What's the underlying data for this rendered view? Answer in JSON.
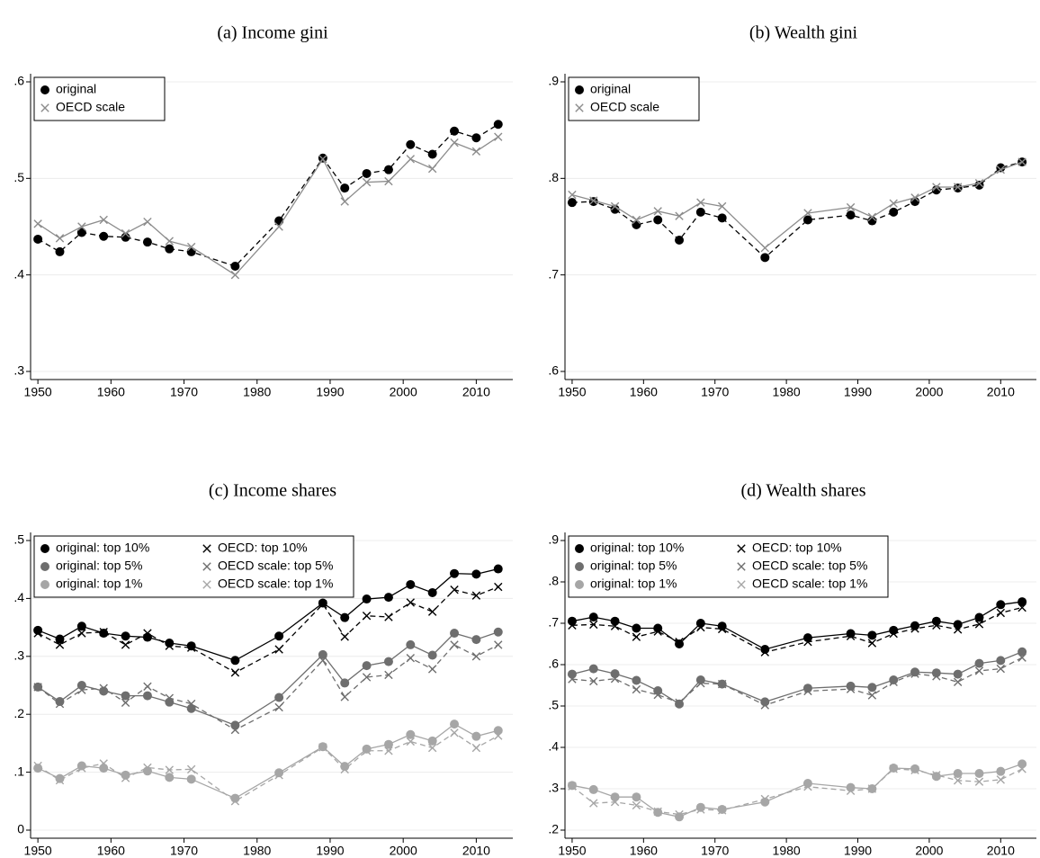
{
  "chart_data": [
    {
      "type": "line",
      "title": "(a) Income gini",
      "x": [
        1950,
        1953,
        1956,
        1959,
        1962,
        1965,
        1968,
        1971,
        1977,
        1983,
        1989,
        1992,
        1995,
        1998,
        2001,
        2004,
        2007,
        2010,
        2013
      ],
      "xlim": [
        1949,
        2015
      ],
      "xticks": [
        1950,
        1960,
        1970,
        1980,
        1990,
        2000,
        2010
      ],
      "ylim": [
        0.3,
        0.6
      ],
      "yticks": [
        {
          "value": 0.3,
          "label": ".3"
        },
        {
          "value": 0.4,
          "label": ".4"
        },
        {
          "value": 0.5,
          "label": ".5"
        },
        {
          "value": 0.6,
          "label": ".6"
        }
      ],
      "grid": true,
      "legend": "top-left",
      "series": [
        {
          "name": "original",
          "color": "#000000",
          "marker": "circle",
          "line_style": "dashed",
          "values": [
            0.437,
            0.424,
            0.444,
            0.44,
            0.439,
            0.434,
            0.427,
            0.424,
            0.409,
            0.456,
            0.521,
            0.49,
            0.505,
            0.509,
            0.535,
            0.525,
            0.549,
            0.542,
            0.556
          ]
        },
        {
          "name": "OECD scale",
          "color": "#8c8c8c",
          "marker": "x",
          "line_style": "solid",
          "values": [
            0.453,
            0.438,
            0.45,
            0.457,
            0.443,
            0.455,
            0.435,
            0.429,
            0.4,
            0.45,
            0.52,
            0.476,
            0.496,
            0.497,
            0.52,
            0.51,
            0.537,
            0.528,
            0.543
          ]
        }
      ]
    },
    {
      "type": "line",
      "title": "(b) Wealth gini",
      "x": [
        1950,
        1953,
        1956,
        1959,
        1962,
        1965,
        1968,
        1971,
        1977,
        1983,
        1989,
        1992,
        1995,
        1998,
        2001,
        2004,
        2007,
        2010,
        2013
      ],
      "xlim": [
        1949,
        2015
      ],
      "xticks": [
        1950,
        1960,
        1970,
        1980,
        1990,
        2000,
        2010
      ],
      "ylim": [
        0.6,
        0.9
      ],
      "yticks": [
        {
          "value": 0.6,
          "label": ".6"
        },
        {
          "value": 0.7,
          "label": ".7"
        },
        {
          "value": 0.8,
          "label": ".8"
        },
        {
          "value": 0.9,
          "label": ".9"
        }
      ],
      "grid": true,
      "legend": "top-left",
      "series": [
        {
          "name": "original",
          "color": "#000000",
          "marker": "circle",
          "line_style": "dashed",
          "values": [
            0.775,
            0.776,
            0.768,
            0.752,
            0.757,
            0.736,
            0.765,
            0.759,
            0.718,
            0.757,
            0.762,
            0.756,
            0.765,
            0.776,
            0.788,
            0.79,
            0.793,
            0.811,
            0.817
          ]
        },
        {
          "name": "OECD scale",
          "color": "#8c8c8c",
          "marker": "x",
          "line_style": "solid",
          "values": [
            0.783,
            0.777,
            0.771,
            0.757,
            0.766,
            0.761,
            0.775,
            0.771,
            0.728,
            0.764,
            0.77,
            0.76,
            0.774,
            0.78,
            0.791,
            0.791,
            0.795,
            0.809,
            0.817
          ]
        }
      ]
    },
    {
      "type": "line",
      "title": "(c) Income shares",
      "x": [
        1950,
        1953,
        1956,
        1959,
        1962,
        1965,
        1968,
        1971,
        1977,
        1983,
        1989,
        1992,
        1995,
        1998,
        2001,
        2004,
        2007,
        2010,
        2013
      ],
      "xlim": [
        1949,
        2015
      ],
      "xticks": [
        1950,
        1960,
        1970,
        1980,
        1990,
        2000,
        2010
      ],
      "ylim": [
        0,
        0.5
      ],
      "yticks": [
        0,
        {
          "value": 0.1,
          "label": ".1"
        },
        {
          "value": 0.2,
          "label": ".2"
        },
        {
          "value": 0.3,
          "label": ".3"
        },
        {
          "value": 0.4,
          "label": ".4"
        },
        {
          "value": 0.5,
          "label": ".5"
        }
      ],
      "grid": true,
      "legend": "top-left",
      "series": [
        {
          "name": "original: top 10%",
          "color": "#000000",
          "marker": "circle",
          "line_style": "solid",
          "values": [
            0.345,
            0.33,
            0.352,
            0.34,
            0.335,
            0.333,
            0.323,
            0.318,
            0.293,
            0.335,
            0.392,
            0.367,
            0.399,
            0.402,
            0.424,
            0.41,
            0.443,
            0.442,
            0.451
          ]
        },
        {
          "name": "original: top 5%",
          "color": "#6e6e6e",
          "marker": "circle",
          "line_style": "solid",
          "values": [
            0.247,
            0.222,
            0.25,
            0.24,
            0.232,
            0.232,
            0.221,
            0.21,
            0.181,
            0.229,
            0.303,
            0.254,
            0.284,
            0.291,
            0.32,
            0.302,
            0.34,
            0.329,
            0.342
          ]
        },
        {
          "name": "original: top 1%",
          "color": "#a6a6a6",
          "marker": "circle",
          "line_style": "solid",
          "values": [
            0.107,
            0.089,
            0.111,
            0.107,
            0.095,
            0.102,
            0.091,
            0.088,
            0.055,
            0.099,
            0.144,
            0.11,
            0.14,
            0.148,
            0.165,
            0.154,
            0.183,
            0.162,
            0.172
          ]
        },
        {
          "name": "OECD: top 10%",
          "color": "#000000",
          "marker": "x",
          "line_style": "dashed",
          "values": [
            0.34,
            0.32,
            0.34,
            0.342,
            0.32,
            0.34,
            0.318,
            0.315,
            0.272,
            0.312,
            0.39,
            0.334,
            0.37,
            0.368,
            0.393,
            0.377,
            0.415,
            0.405,
            0.42
          ]
        },
        {
          "name": "OECD scale: top 5%",
          "color": "#6e6e6e",
          "marker": "x",
          "line_style": "dashed",
          "values": [
            0.247,
            0.218,
            0.242,
            0.245,
            0.22,
            0.248,
            0.228,
            0.218,
            0.173,
            0.212,
            0.293,
            0.23,
            0.264,
            0.268,
            0.297,
            0.278,
            0.32,
            0.3,
            0.32
          ]
        },
        {
          "name": "OECD scale: top 1%",
          "color": "#a6a6a6",
          "marker": "x",
          "line_style": "dashed",
          "values": [
            0.111,
            0.086,
            0.107,
            0.115,
            0.09,
            0.108,
            0.104,
            0.105,
            0.05,
            0.095,
            0.143,
            0.105,
            0.137,
            0.137,
            0.153,
            0.142,
            0.168,
            0.142,
            0.163
          ]
        }
      ]
    },
    {
      "type": "line",
      "title": "(d) Wealth shares",
      "x": [
        1950,
        1953,
        1956,
        1959,
        1962,
        1965,
        1968,
        1971,
        1977,
        1983,
        1989,
        1992,
        1995,
        1998,
        2001,
        2004,
        2007,
        2010,
        2013
      ],
      "xlim": [
        1949,
        2015
      ],
      "xticks": [
        1950,
        1960,
        1970,
        1980,
        1990,
        2000,
        2010
      ],
      "ylim": [
        0.2,
        0.9
      ],
      "yticks": [
        {
          "value": 0.2,
          "label": ".2"
        },
        {
          "value": 0.3,
          "label": ".3"
        },
        {
          "value": 0.4,
          "label": ".4"
        },
        {
          "value": 0.5,
          "label": ".5"
        },
        {
          "value": 0.6,
          "label": ".6"
        },
        {
          "value": 0.7,
          "label": ".7"
        },
        {
          "value": 0.8,
          "label": ".8"
        },
        {
          "value": 0.9,
          "label": ".9"
        }
      ],
      "grid": true,
      "legend": "top-left",
      "series": [
        {
          "name": "original: top 10%",
          "color": "#000000",
          "marker": "circle",
          "line_style": "solid",
          "values": [
            0.705,
            0.715,
            0.705,
            0.688,
            0.688,
            0.65,
            0.7,
            0.693,
            0.637,
            0.665,
            0.675,
            0.671,
            0.683,
            0.694,
            0.705,
            0.697,
            0.714,
            0.745,
            0.752
          ]
        },
        {
          "name": "original: top 5%",
          "color": "#6e6e6e",
          "marker": "circle",
          "line_style": "solid",
          "values": [
            0.577,
            0.59,
            0.578,
            0.562,
            0.537,
            0.505,
            0.563,
            0.553,
            0.51,
            0.543,
            0.548,
            0.545,
            0.563,
            0.582,
            0.58,
            0.577,
            0.603,
            0.61,
            0.631
          ]
        },
        {
          "name": "original: top 1%",
          "color": "#a6a6a6",
          "marker": "circle",
          "line_style": "solid",
          "values": [
            0.308,
            0.298,
            0.28,
            0.28,
            0.243,
            0.232,
            0.255,
            0.25,
            0.268,
            0.313,
            0.303,
            0.3,
            0.35,
            0.348,
            0.33,
            0.337,
            0.337,
            0.342,
            0.36
          ]
        },
        {
          "name": "OECD: top 10%",
          "color": "#000000",
          "marker": "x",
          "line_style": "dashed",
          "values": [
            0.695,
            0.697,
            0.693,
            0.667,
            0.68,
            0.655,
            0.69,
            0.686,
            0.63,
            0.655,
            0.669,
            0.652,
            0.675,
            0.687,
            0.695,
            0.685,
            0.698,
            0.725,
            0.738
          ]
        },
        {
          "name": "OECD scale: top 5%",
          "color": "#6e6e6e",
          "marker": "x",
          "line_style": "dashed",
          "values": [
            0.565,
            0.56,
            0.566,
            0.54,
            0.527,
            0.508,
            0.555,
            0.553,
            0.502,
            0.536,
            0.541,
            0.526,
            0.558,
            0.578,
            0.572,
            0.558,
            0.585,
            0.59,
            0.617
          ]
        },
        {
          "name": "OECD scale: top 1%",
          "color": "#a6a6a6",
          "marker": "x",
          "line_style": "dashed",
          "values": [
            0.306,
            0.265,
            0.268,
            0.26,
            0.245,
            0.238,
            0.25,
            0.248,
            0.275,
            0.305,
            0.295,
            0.3,
            0.348,
            0.345,
            0.333,
            0.32,
            0.317,
            0.322,
            0.348
          ]
        }
      ]
    }
  ]
}
